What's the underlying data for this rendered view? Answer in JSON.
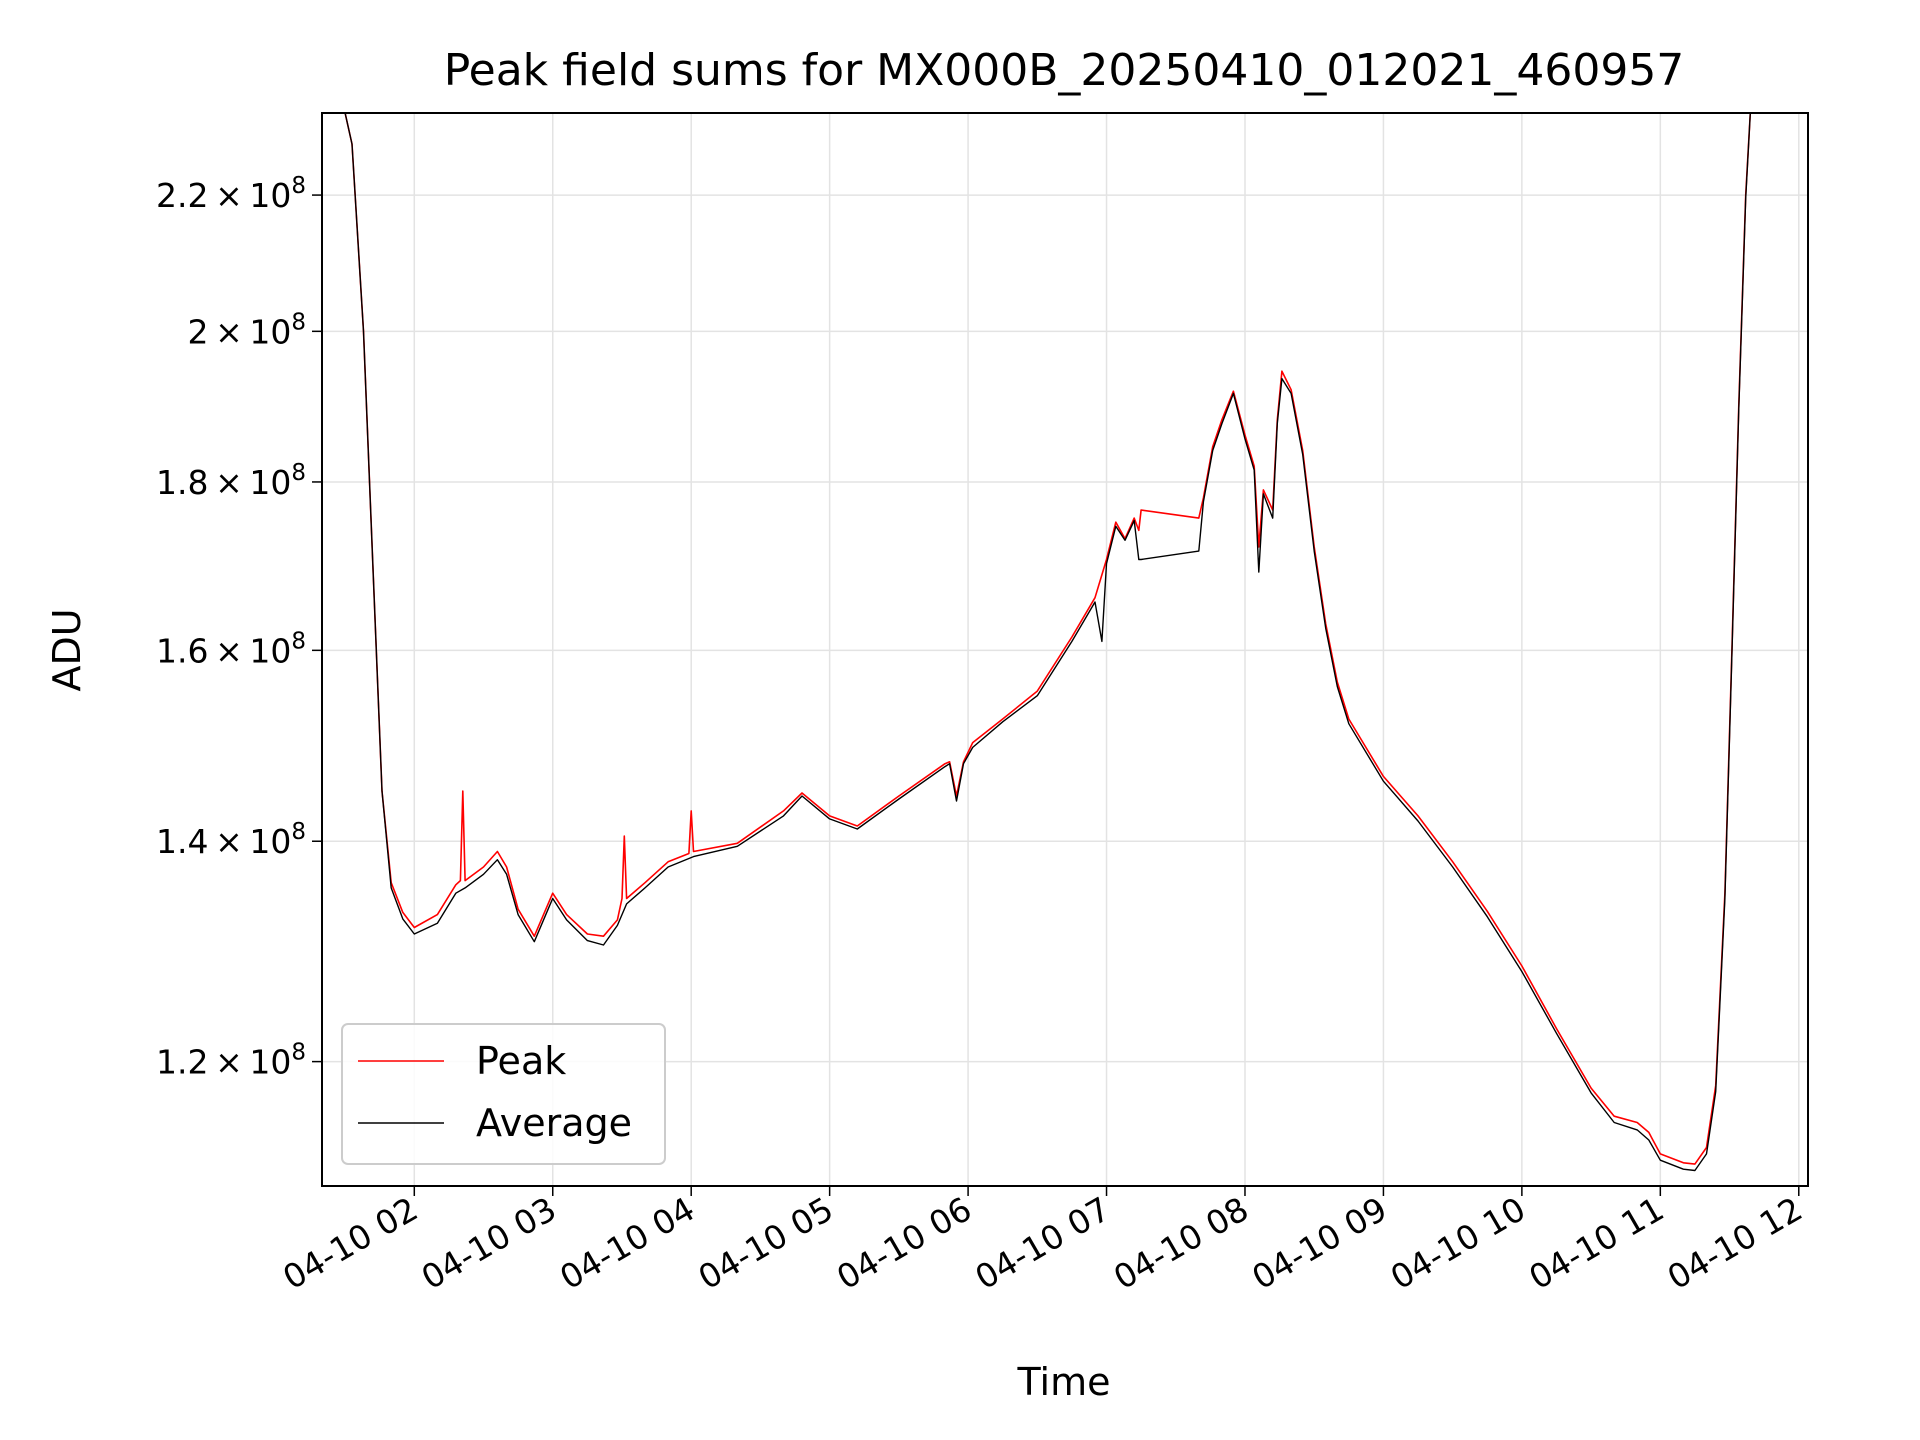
{
  "chart_data": {
    "type": "line",
    "title": "Peak field sums for MX000B_20250410_012021_460957",
    "xlabel": "Time",
    "ylabel": "ADU",
    "y_scale": "log",
    "grid": true,
    "legend_position": "lower-left",
    "xlim": [
      "2025-04-10 01:20",
      "2025-04-10 12:04"
    ],
    "ylim": [
      110000000.0,
      233000000.0
    ],
    "x_ticks": [
      "04-10 02",
      "04-10 03",
      "04-10 04",
      "04-10 05",
      "04-10 06",
      "04-10 07",
      "04-10 08",
      "04-10 09",
      "04-10 10",
      "04-10 11",
      "04-10 12"
    ],
    "y_ticks": [
      {
        "value": 120000000.0,
        "mantissa": "1.2",
        "exp": "8"
      },
      {
        "value": 140000000.0,
        "mantissa": "1.4",
        "exp": "8"
      },
      {
        "value": 160000000.0,
        "mantissa": "1.6",
        "exp": "8"
      },
      {
        "value": 180000000.0,
        "mantissa": "1.8",
        "exp": "8"
      },
      {
        "value": 200000000.0,
        "mantissa": "2",
        "exp": "8"
      },
      {
        "value": 220000000.0,
        "mantissa": "2.2",
        "exp": "8"
      }
    ],
    "tick_base": "10",
    "series": [
      {
        "name": "Peak",
        "color": "#ff0000",
        "points": [
          [
            "2025-04-10 01:20",
            233000000.0
          ],
          [
            "2025-04-10 01:30",
            233000000.0
          ],
          [
            "2025-04-10 01:33",
            228000000.0
          ],
          [
            "2025-04-10 01:38",
            200000000.0
          ],
          [
            "2025-04-10 01:42",
            170000000.0
          ],
          [
            "2025-04-10 01:46",
            145000000.0
          ],
          [
            "2025-04-10 01:50",
            136000000.0
          ],
          [
            "2025-04-10 01:55",
            133200000.0
          ],
          [
            "2025-04-10 02:00",
            131800000.0
          ],
          [
            "2025-04-10 02:10",
            133000000.0
          ],
          [
            "2025-04-10 02:18",
            135800000.0
          ],
          [
            "2025-04-10 02:20",
            136200000.0
          ],
          [
            "2025-04-10 02:21",
            145000000.0
          ],
          [
            "2025-04-10 02:22",
            136200000.0
          ],
          [
            "2025-04-10 02:30",
            137500000.0
          ],
          [
            "2025-04-10 02:36",
            139000000.0
          ],
          [
            "2025-04-10 02:40",
            137500000.0
          ],
          [
            "2025-04-10 02:45",
            133500000.0
          ],
          [
            "2025-04-10 02:52",
            131000000.0
          ],
          [
            "2025-04-10 02:58",
            134000000.0
          ],
          [
            "2025-04-10 03:00",
            135000000.0
          ],
          [
            "2025-04-10 03:06",
            133000000.0
          ],
          [
            "2025-04-10 03:15",
            131200000.0
          ],
          [
            "2025-04-10 03:22",
            131000000.0
          ],
          [
            "2025-04-10 03:28",
            132500000.0
          ],
          [
            "2025-04-10 03:30",
            134500000.0
          ],
          [
            "2025-04-10 03:31",
            140500000.0
          ],
          [
            "2025-04-10 03:32",
            134500000.0
          ],
          [
            "2025-04-10 03:40",
            136000000.0
          ],
          [
            "2025-04-10 03:50",
            138000000.0
          ],
          [
            "2025-04-10 03:59",
            138800000.0
          ],
          [
            "2025-04-10 04:00",
            143000000.0
          ],
          [
            "2025-04-10 04:01",
            139000000.0
          ],
          [
            "2025-04-10 04:20",
            139800000.0
          ],
          [
            "2025-04-10 04:40",
            143000000.0
          ],
          [
            "2025-04-10 04:48",
            144800000.0
          ],
          [
            "2025-04-10 05:00",
            142500000.0
          ],
          [
            "2025-04-10 05:12",
            141500000.0
          ],
          [
            "2025-04-10 05:30",
            144500000.0
          ],
          [
            "2025-04-10 05:50",
            147800000.0
          ],
          [
            "2025-04-10 05:52",
            148000000.0
          ],
          [
            "2025-04-10 05:55",
            144500000.0
          ],
          [
            "2025-04-10 05:58",
            148000000.0
          ],
          [
            "2025-04-10 06:02",
            150000000.0
          ],
          [
            "2025-04-10 06:15",
            152500000.0
          ],
          [
            "2025-04-10 06:30",
            155500000.0
          ],
          [
            "2025-04-10 06:45",
            161500000.0
          ],
          [
            "2025-04-10 06:55",
            166000000.0
          ],
          [
            "2025-04-10 07:00",
            170500000.0
          ],
          [
            "2025-04-10 07:04",
            175000000.0
          ],
          [
            "2025-04-10 07:08",
            173000000.0
          ],
          [
            "2025-04-10 07:12",
            175500000.0
          ],
          [
            "2025-04-10 07:14",
            174000000.0
          ],
          [
            "2025-04-10 07:15",
            176500000.0
          ],
          [
            "2025-04-10 07:40",
            175500000.0
          ],
          [
            "2025-04-10 07:42",
            178000000.0
          ],
          [
            "2025-04-10 07:46",
            184500000.0
          ],
          [
            "2025-04-10 07:50",
            188000000.0
          ],
          [
            "2025-04-10 07:55",
            191800000.0
          ],
          [
            "2025-04-10 08:00",
            186000000.0
          ],
          [
            "2025-04-10 08:04",
            182000000.0
          ],
          [
            "2025-04-10 08:06",
            172000000.0
          ],
          [
            "2025-04-10 08:08",
            179000000.0
          ],
          [
            "2025-04-10 08:12",
            176500000.0
          ],
          [
            "2025-04-10 08:14",
            188000000.0
          ],
          [
            "2025-04-10 08:16",
            194500000.0
          ],
          [
            "2025-04-10 08:20",
            192000000.0
          ],
          [
            "2025-04-10 08:25",
            184000000.0
          ],
          [
            "2025-04-10 08:30",
            172000000.0
          ],
          [
            "2025-04-10 08:35",
            163000000.0
          ],
          [
            "2025-04-10 08:40",
            156500000.0
          ],
          [
            "2025-04-10 08:45",
            152500000.0
          ],
          [
            "2025-04-10 09:00",
            146500000.0
          ],
          [
            "2025-04-10 09:15",
            142500000.0
          ],
          [
            "2025-04-10 09:30",
            138000000.0
          ],
          [
            "2025-04-10 09:45",
            133300000.0
          ],
          [
            "2025-04-10 10:00",
            128300000.0
          ],
          [
            "2025-04-10 10:15",
            122800000.0
          ],
          [
            "2025-04-10 10:30",
            117800000.0
          ],
          [
            "2025-04-10 10:40",
            115500000.0
          ],
          [
            "2025-04-10 10:50",
            115000000.0
          ],
          [
            "2025-04-10 10:55",
            114200000.0
          ],
          [
            "2025-04-10 11:00",
            112500000.0
          ],
          [
            "2025-04-10 11:10",
            111800000.0
          ],
          [
            "2025-04-10 11:15",
            111700000.0
          ],
          [
            "2025-04-10 11:20",
            113000000.0
          ],
          [
            "2025-04-10 11:24",
            118000000.0
          ],
          [
            "2025-04-10 11:28",
            135000000.0
          ],
          [
            "2025-04-10 11:31",
            160000000.0
          ],
          [
            "2025-04-10 11:34",
            190000000.0
          ],
          [
            "2025-04-10 11:37",
            220000000.0
          ],
          [
            "2025-04-10 11:39",
            233000000.0
          ]
        ]
      },
      {
        "name": "Average",
        "color": "#000000",
        "points": [
          [
            "2025-04-10 01:20",
            233000000.0
          ],
          [
            "2025-04-10 01:30",
            233000000.0
          ],
          [
            "2025-04-10 01:33",
            228000000.0
          ],
          [
            "2025-04-10 01:38",
            200000000.0
          ],
          [
            "2025-04-10 01:42",
            170000000.0
          ],
          [
            "2025-04-10 01:46",
            145000000.0
          ],
          [
            "2025-04-10 01:50",
            135500000.0
          ],
          [
            "2025-04-10 01:55",
            132600000.0
          ],
          [
            "2025-04-10 02:00",
            131200000.0
          ],
          [
            "2025-04-10 02:10",
            132200000.0
          ],
          [
            "2025-04-10 02:18",
            135000000.0
          ],
          [
            "2025-04-10 02:22",
            135500000.0
          ],
          [
            "2025-04-10 02:30",
            136800000.0
          ],
          [
            "2025-04-10 02:36",
            138200000.0
          ],
          [
            "2025-04-10 02:40",
            136800000.0
          ],
          [
            "2025-04-10 02:45",
            133000000.0
          ],
          [
            "2025-04-10 02:52",
            130500000.0
          ],
          [
            "2025-04-10 02:58",
            133500000.0
          ],
          [
            "2025-04-10 03:00",
            134500000.0
          ],
          [
            "2025-04-10 03:06",
            132500000.0
          ],
          [
            "2025-04-10 03:15",
            130600000.0
          ],
          [
            "2025-04-10 03:22",
            130200000.0
          ],
          [
            "2025-04-10 03:28",
            132000000.0
          ],
          [
            "2025-04-10 03:32",
            134000000.0
          ],
          [
            "2025-04-10 03:40",
            135500000.0
          ],
          [
            "2025-04-10 03:50",
            137500000.0
          ],
          [
            "2025-04-10 04:01",
            138500000.0
          ],
          [
            "2025-04-10 04:20",
            139500000.0
          ],
          [
            "2025-04-10 04:40",
            142500000.0
          ],
          [
            "2025-04-10 04:48",
            144500000.0
          ],
          [
            "2025-04-10 05:00",
            142200000.0
          ],
          [
            "2025-04-10 05:12",
            141200000.0
          ],
          [
            "2025-04-10 05:30",
            144200000.0
          ],
          [
            "2025-04-10 05:50",
            147500000.0
          ],
          [
            "2025-04-10 05:52",
            147800000.0
          ],
          [
            "2025-04-10 05:55",
            144000000.0
          ],
          [
            "2025-04-10 05:58",
            147800000.0
          ],
          [
            "2025-04-10 06:02",
            149500000.0
          ],
          [
            "2025-04-10 06:15",
            152200000.0
          ],
          [
            "2025-04-10 06:30",
            155000000.0
          ],
          [
            "2025-04-10 06:45",
            161000000.0
          ],
          [
            "2025-04-10 06:55",
            165500000.0
          ],
          [
            "2025-04-10 06:58",
            161000000.0
          ],
          [
            "2025-04-10 07:00",
            170000000.0
          ],
          [
            "2025-04-10 07:04",
            174500000.0
          ],
          [
            "2025-04-10 07:08",
            172800000.0
          ],
          [
            "2025-04-10 07:12",
            175200000.0
          ],
          [
            "2025-04-10 07:14",
            170500000.0
          ],
          [
            "2025-04-10 07:15",
            170500000.0
          ],
          [
            "2025-04-10 07:40",
            171500000.0
          ],
          [
            "2025-04-10 07:42",
            177500000.0
          ],
          [
            "2025-04-10 07:46",
            184000000.0
          ],
          [
            "2025-04-10 07:50",
            187500000.0
          ],
          [
            "2025-04-10 07:55",
            191500000.0
          ],
          [
            "2025-04-10 08:00",
            185500000.0
          ],
          [
            "2025-04-10 08:04",
            181500000.0
          ],
          [
            "2025-04-10 08:06",
            169000000.0
          ],
          [
            "2025-04-10 08:08",
            178500000.0
          ],
          [
            "2025-04-10 08:12",
            175500000.0
          ],
          [
            "2025-04-10 08:14",
            187500000.0
          ],
          [
            "2025-04-10 08:16",
            193500000.0
          ],
          [
            "2025-04-10 08:20",
            191500000.0
          ],
          [
            "2025-04-10 08:25",
            183500000.0
          ],
          [
            "2025-04-10 08:30",
            171500000.0
          ],
          [
            "2025-04-10 08:35",
            162500000.0
          ],
          [
            "2025-04-10 08:40",
            156000000.0
          ],
          [
            "2025-04-10 08:45",
            152000000.0
          ],
          [
            "2025-04-10 09:00",
            146000000.0
          ],
          [
            "2025-04-10 09:15",
            142000000.0
          ],
          [
            "2025-04-10 09:30",
            137500000.0
          ],
          [
            "2025-04-10 09:45",
            132800000.0
          ],
          [
            "2025-04-10 10:00",
            127800000.0
          ],
          [
            "2025-04-10 10:15",
            122400000.0
          ],
          [
            "2025-04-10 10:30",
            117400000.0
          ],
          [
            "2025-04-10 10:40",
            115000000.0
          ],
          [
            "2025-04-10 10:50",
            114400000.0
          ],
          [
            "2025-04-10 10:55",
            113600000.0
          ],
          [
            "2025-04-10 11:00",
            112000000.0
          ],
          [
            "2025-04-10 11:10",
            111300000.0
          ],
          [
            "2025-04-10 11:15",
            111200000.0
          ],
          [
            "2025-04-10 11:20",
            112500000.0
          ],
          [
            "2025-04-10 11:24",
            117500000.0
          ],
          [
            "2025-04-10 11:28",
            134500000.0
          ],
          [
            "2025-04-10 11:31",
            159500000.0
          ],
          [
            "2025-04-10 11:34",
            189500000.0
          ],
          [
            "2025-04-10 11:37",
            219500000.0
          ],
          [
            "2025-04-10 11:39",
            233000000.0
          ]
        ]
      }
    ]
  }
}
